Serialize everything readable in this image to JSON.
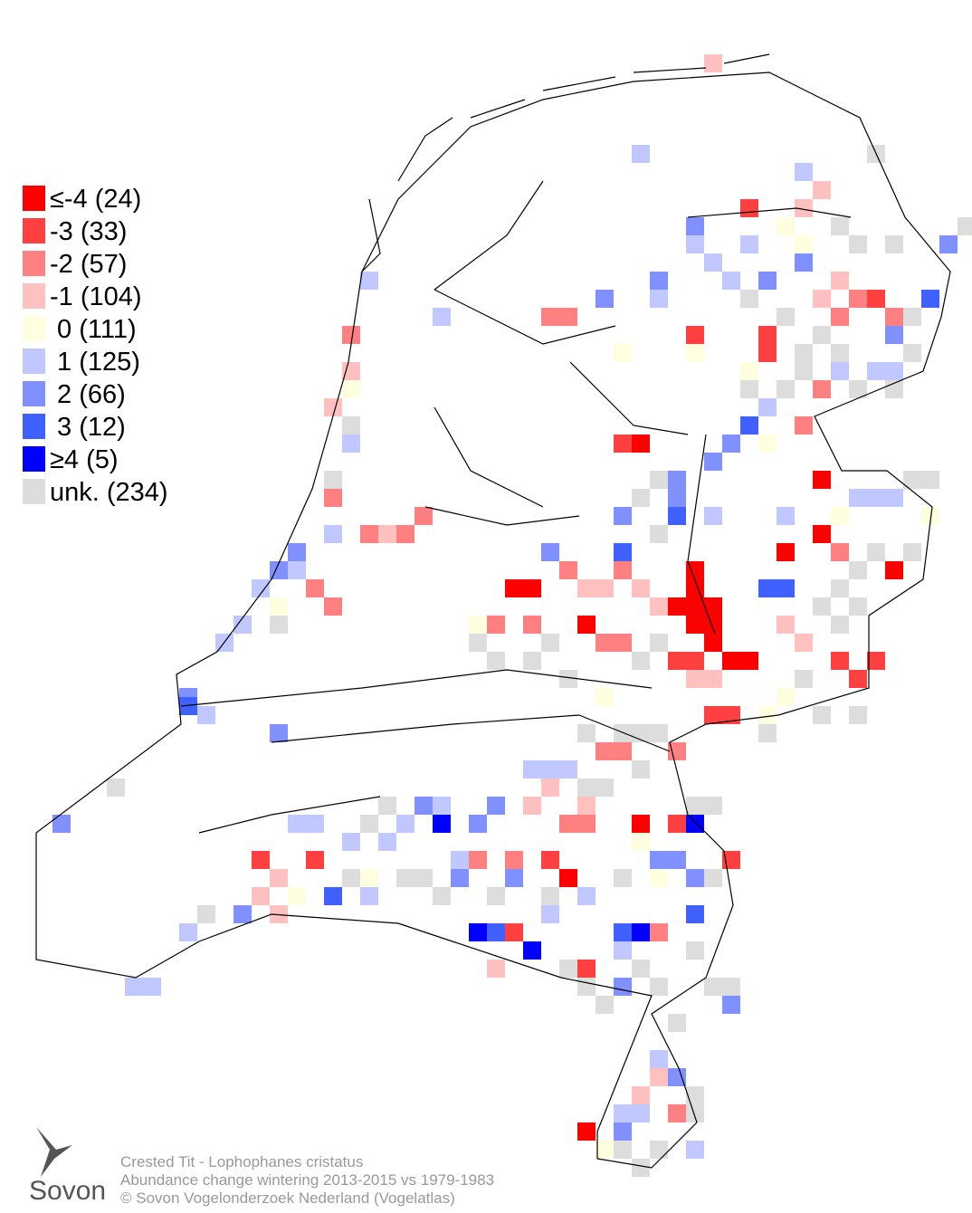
{
  "legend": [
    {
      "label": "≤-4 (24)",
      "color": "#ff0000"
    },
    {
      "label": "-3 (33)",
      "color": "#ff4040"
    },
    {
      "label": "-2 (57)",
      "color": "#ff8080"
    },
    {
      "label": "-1 (104)",
      "color": "#ffc0c0"
    },
    {
      "label": " 0 (111)",
      "color": "#ffffe0"
    },
    {
      "label": " 1 (125)",
      "color": "#c0c8ff"
    },
    {
      "label": " 2 (66)",
      "color": "#8090ff"
    },
    {
      "label": " 3 (12)",
      "color": "#4060ff"
    },
    {
      "label": "≥4 (5)",
      "color": "#0000ff"
    },
    {
      "label": "unk. (234)",
      "color": "#dddddd"
    }
  ],
  "footer": {
    "logo": "Sovon",
    "lines": [
      "Crested Tit - Lophophanes cristatus",
      "Abundance change wintering  2013-2015 vs 1979-1983",
      "© Sovon Vogelonderzoek Nederland (Vogelatlas)"
    ]
  }
}
